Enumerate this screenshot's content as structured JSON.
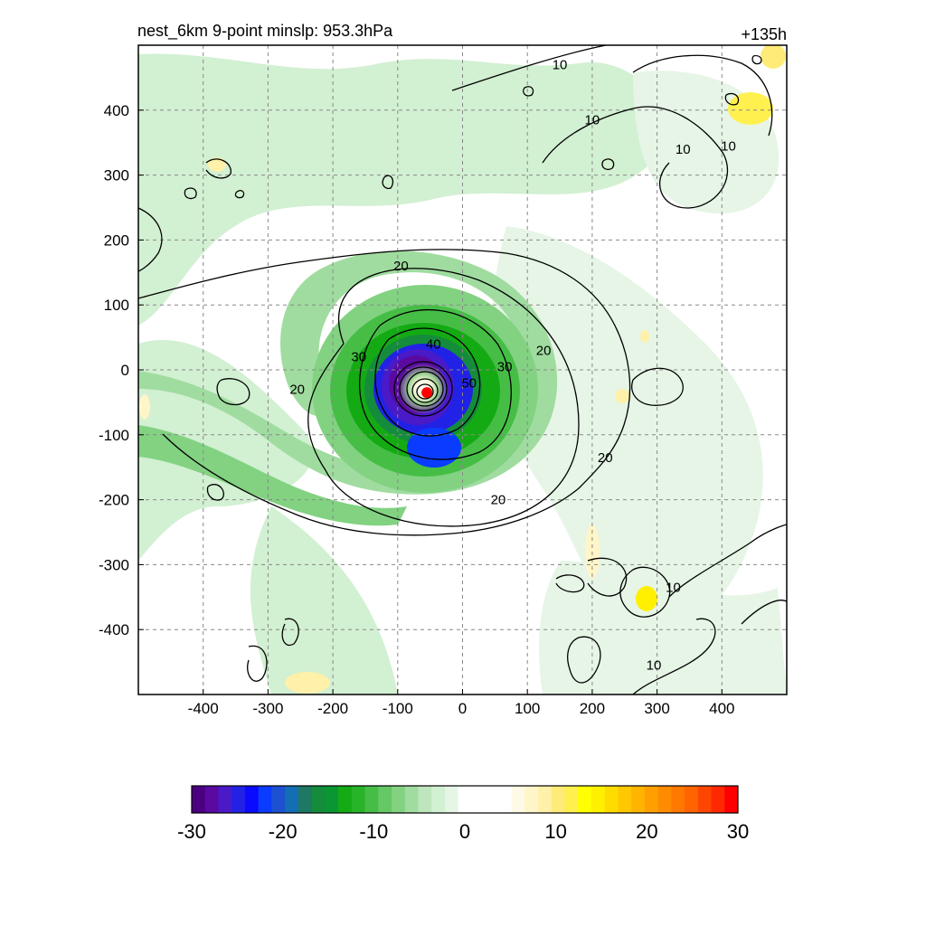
{
  "chart_data": {
    "type": "heatmap",
    "title": "nest_6km  9-point minslp: 953.3hPa",
    "time_label": "+135h",
    "xlim": [
      -500,
      500
    ],
    "ylim": [
      -500,
      500
    ],
    "x_ticks": [
      -400,
      -300,
      -200,
      -100,
      0,
      100,
      200,
      300,
      400
    ],
    "y_ticks": [
      400,
      300,
      200,
      100,
      0,
      -100,
      -200,
      -300,
      -400
    ],
    "grid": true,
    "center_marker": {
      "x": -55,
      "y": -35,
      "color": "#ff0000"
    },
    "contour_labels": [
      {
        "text": "10",
        "x": 150,
        "y": 470
      },
      {
        "text": "10",
        "x": 200,
        "y": 385
      },
      {
        "text": "10",
        "x": 340,
        "y": 340
      },
      {
        "text": "10",
        "x": 410,
        "y": 345
      },
      {
        "text": "20",
        "x": -95,
        "y": 160
      },
      {
        "text": "20",
        "x": -255,
        "y": -30
      },
      {
        "text": "20",
        "x": 125,
        "y": 30
      },
      {
        "text": "20",
        "x": 220,
        "y": -135
      },
      {
        "text": "20",
        "x": 55,
        "y": -200
      },
      {
        "text": "30",
        "x": -160,
        "y": 20
      },
      {
        "text": "30",
        "x": 65,
        "y": 5
      },
      {
        "text": "40",
        "x": -45,
        "y": 40
      },
      {
        "text": "50",
        "x": 10,
        "y": -20
      },
      {
        "text": "10",
        "x": 325,
        "y": -335
      },
      {
        "text": "10",
        "x": 295,
        "y": -455
      }
    ],
    "colorbar": {
      "min": -30,
      "max": 30,
      "tick_labels": [
        "-30",
        "-20",
        "-10",
        "0",
        "10",
        "20",
        "30"
      ],
      "colors": [
        "#4b0082",
        "#5a0aa0",
        "#4a1ac8",
        "#2222e6",
        "#0a0aff",
        "#0a3cff",
        "#1e50d2",
        "#146eb4",
        "#1e7864",
        "#148c3c",
        "#0a9632",
        "#14aa14",
        "#28b428",
        "#46be46",
        "#64c864",
        "#82d282",
        "#a0dca0",
        "#bee6be",
        "#d2f0d2",
        "#e6f5e6",
        "#ffffff",
        "#ffffff",
        "#ffffff",
        "#ffffff",
        "#fffae6",
        "#fff5c8",
        "#fff0aa",
        "#ffeb78",
        "#fff050",
        "#ffff00",
        "#fff000",
        "#ffdc00",
        "#ffc800",
        "#ffb400",
        "#ffa000",
        "#ff8c00",
        "#ff7800",
        "#ff6400",
        "#ff4600",
        "#ff2800",
        "#ff0000"
      ]
    }
  }
}
